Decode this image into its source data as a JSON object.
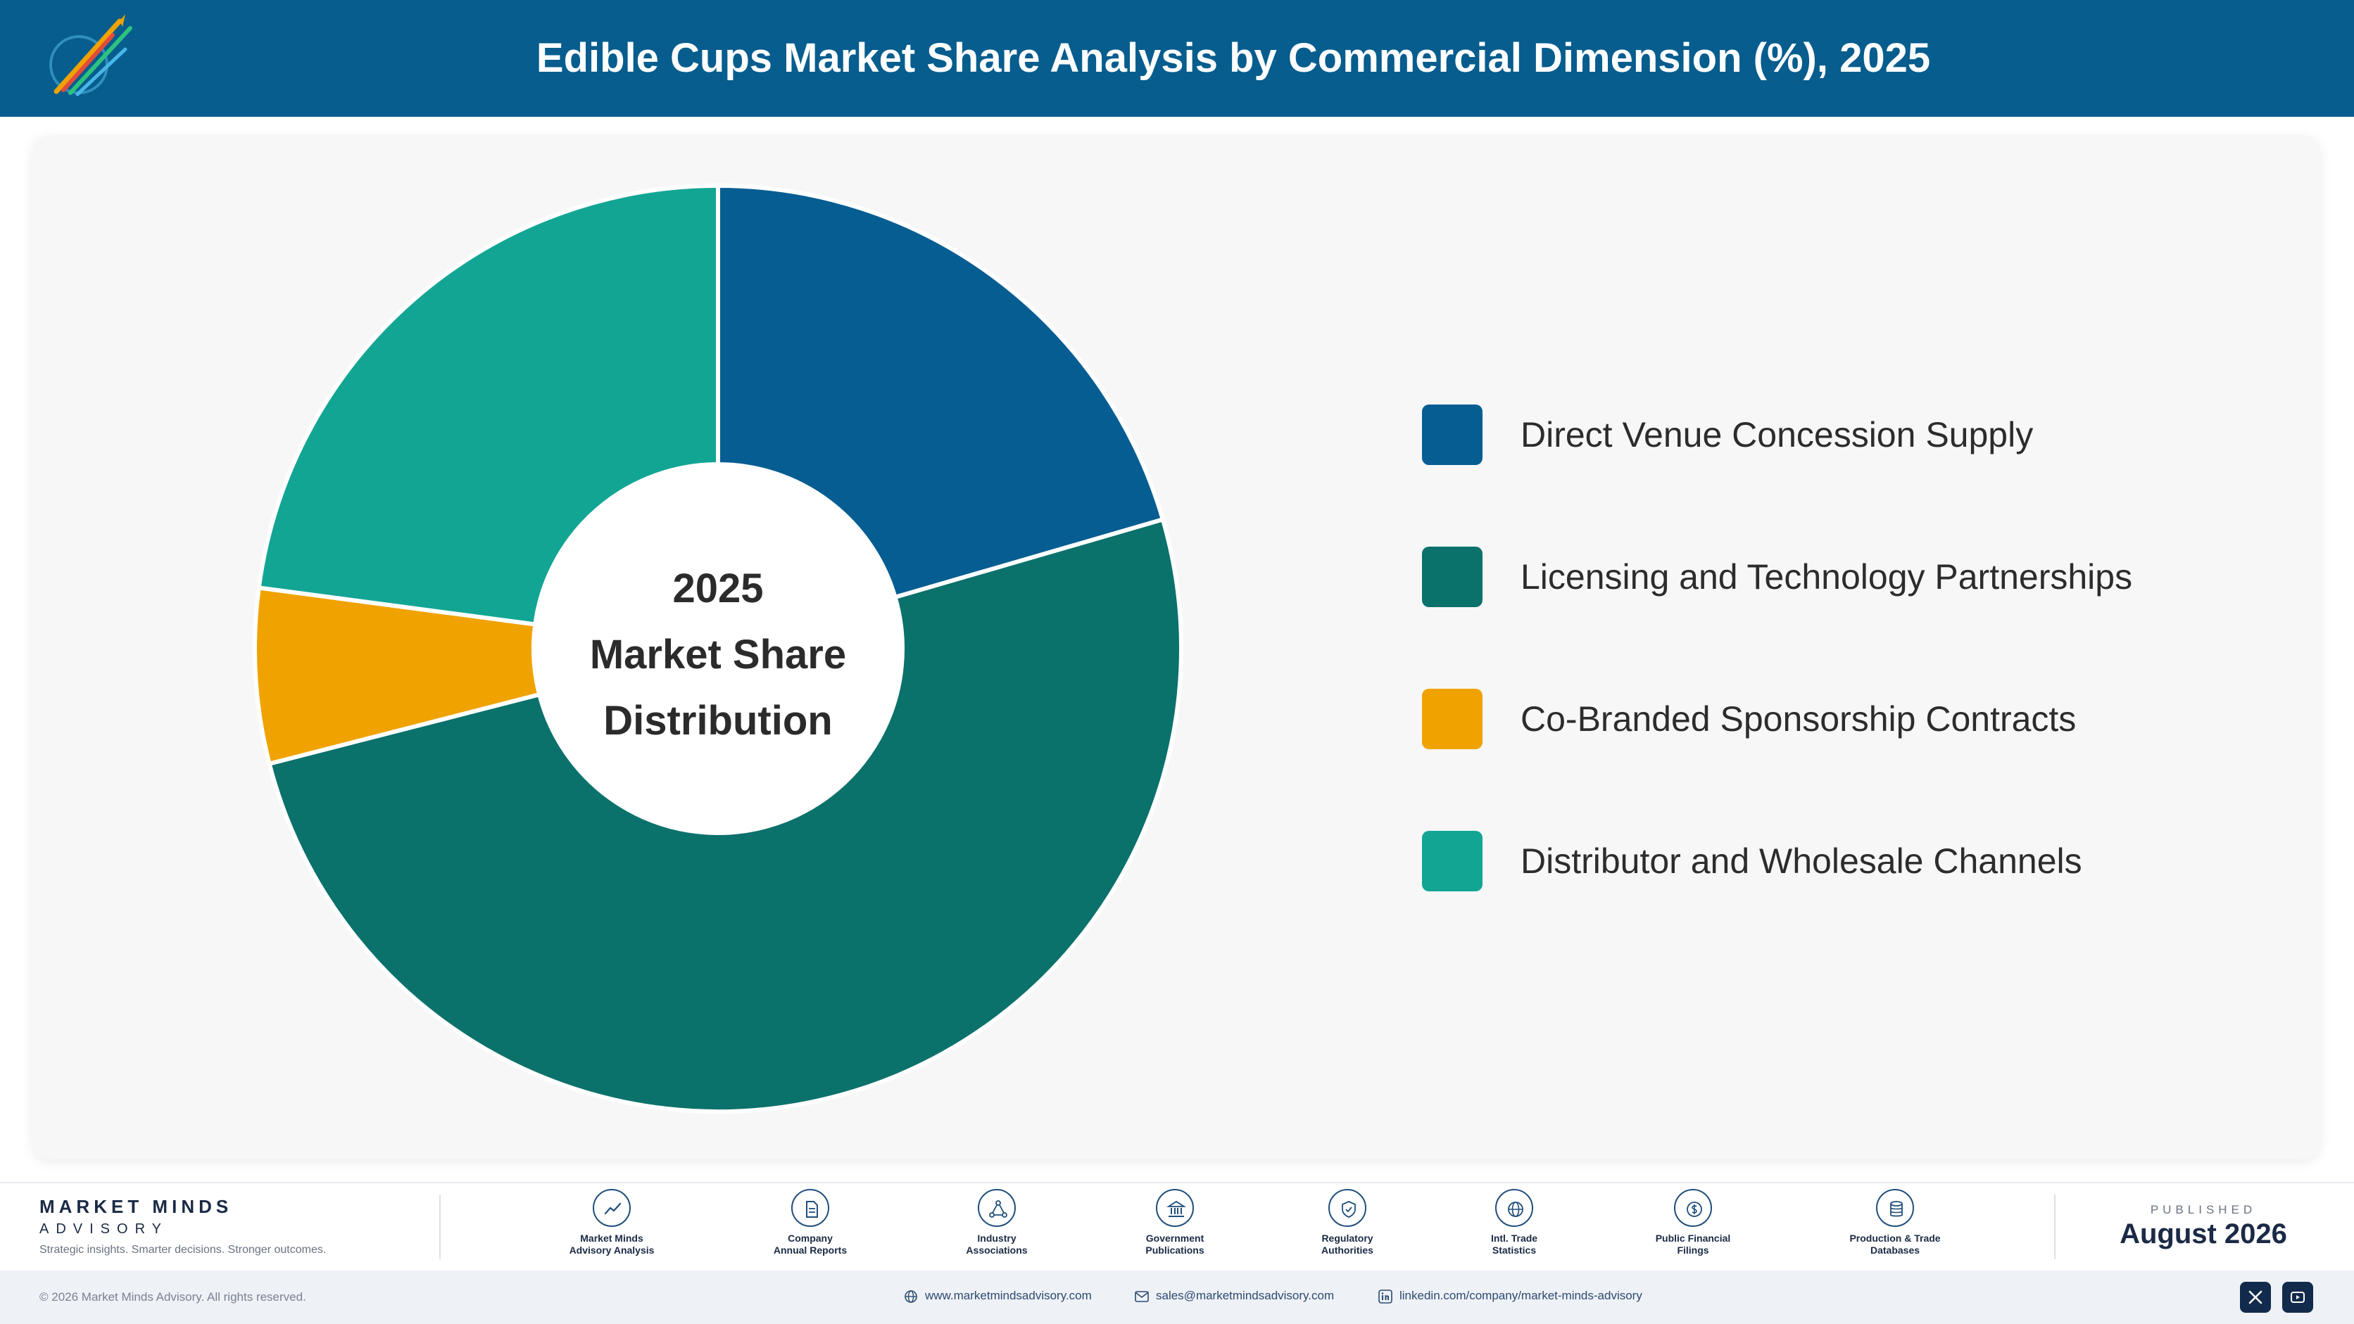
{
  "header": {
    "title": "Edible Cups Market Share Analysis by Commercial Dimension (%), 2025"
  },
  "chart_data": {
    "type": "pie",
    "donut": true,
    "categories": [
      "Direct Venue Concession Supply",
      "Licensing and Technology Partnerships",
      "Co-Branded Sponsorship Contracts",
      "Distributor and Wholesale Channels"
    ],
    "values": [
      20.5,
      50.5,
      6.1,
      22.9
    ],
    "colors": [
      "#065d92",
      "#0b716b",
      "#f0a300",
      "#12a594"
    ],
    "center_label": [
      "2025",
      "Market Share",
      "Distribution"
    ],
    "legend_position": "right"
  },
  "footer": {
    "brand_name": "MARKET MINDS",
    "brand_sub": "ADVISORY",
    "brand_tagline": "Strategic insights. Smarter decisions. Stronger outcomes.",
    "sources": [
      {
        "line1": "Market Minds",
        "line2": "Advisory Analysis",
        "icon": "chart-line-icon"
      },
      {
        "line1": "Company",
        "line2": "Annual Reports",
        "icon": "document-icon"
      },
      {
        "line1": "Industry",
        "line2": "Associations",
        "icon": "network-icon"
      },
      {
        "line1": "Government",
        "line2": "Publications",
        "icon": "building-icon"
      },
      {
        "line1": "Regulatory",
        "line2": "Authorities",
        "icon": "shield-icon"
      },
      {
        "line1": "Intl. Trade",
        "line2": "Statistics",
        "icon": "globe-icon"
      },
      {
        "line1": "Public Financial",
        "line2": "Filings",
        "icon": "coin-icon"
      },
      {
        "line1": "Production & Trade",
        "line2": "Databases",
        "icon": "database-icon"
      }
    ],
    "published_label": "PUBLISHED",
    "published_date": "August 2026",
    "copyright": "© 2026 Market Minds Advisory. All rights reserved.",
    "website": "www.marketmindsadvisory.com",
    "email": "sales@marketmindsadvisory.com",
    "linkedin": "linkedin.com/company/market-minds-advisory"
  }
}
